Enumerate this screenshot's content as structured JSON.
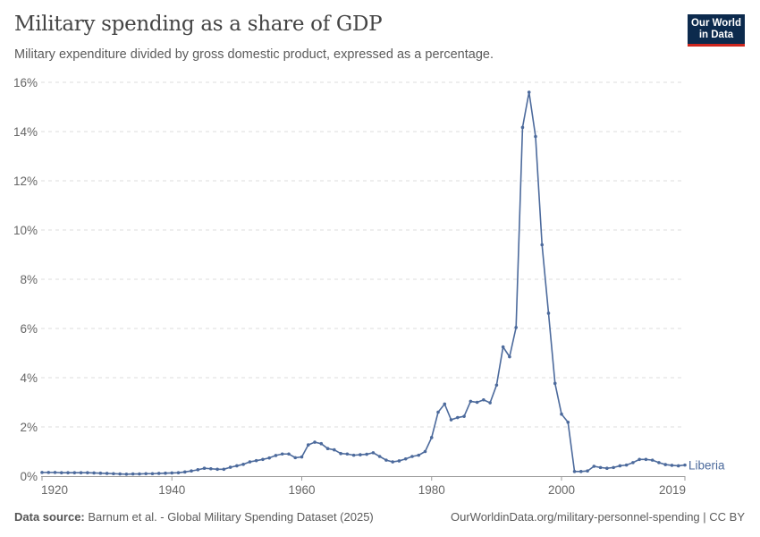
{
  "header": {
    "title": "Military spending as a share of GDP",
    "subtitle": "Military expenditure divided by gross domestic product, expressed as a percentage.",
    "logo_line1": "Our World",
    "logo_line2": "in Data"
  },
  "footer": {
    "source_label": "Data source:",
    "source": "Barnum et al. - Global Military Spending Dataset (2025)",
    "link": "OurWorldinData.org/military-personnel-spending | CC BY"
  },
  "chart_data": {
    "type": "line",
    "title": "Military spending as a share of GDP",
    "xlim": [
      1920,
      2019
    ],
    "ylim": [
      0,
      16
    ],
    "x_ticks": [
      1920,
      1940,
      1960,
      1980,
      2000,
      2019
    ],
    "y_ticks": [
      0,
      2,
      4,
      6,
      8,
      10,
      12,
      14,
      16
    ],
    "y_tick_labels": [
      "0%",
      "2%",
      "4%",
      "6%",
      "8%",
      "10%",
      "12%",
      "14%",
      "16%"
    ],
    "grid": "horizontal dashed",
    "color": "#4c6a9c",
    "series": [
      {
        "name": "Liberia",
        "start_year": 1920,
        "values": [
          0.15,
          0.15,
          0.15,
          0.14,
          0.14,
          0.14,
          0.14,
          0.14,
          0.13,
          0.12,
          0.11,
          0.1,
          0.09,
          0.08,
          0.09,
          0.09,
          0.1,
          0.1,
          0.11,
          0.12,
          0.13,
          0.14,
          0.17,
          0.21,
          0.26,
          0.32,
          0.3,
          0.28,
          0.28,
          0.36,
          0.42,
          0.48,
          0.58,
          0.63,
          0.68,
          0.74,
          0.84,
          0.9,
          0.9,
          0.75,
          0.78,
          1.27,
          1.38,
          1.32,
          1.12,
          1.07,
          0.92,
          0.9,
          0.85,
          0.87,
          0.89,
          0.95,
          0.8,
          0.65,
          0.58,
          0.62,
          0.7,
          0.8,
          0.85,
          1.0,
          1.57,
          2.6,
          2.93,
          2.29,
          2.38,
          2.43,
          3.04,
          3.0,
          3.1,
          2.98,
          3.7,
          5.25,
          4.85,
          6.04,
          14.17,
          15.6,
          13.8,
          9.4,
          6.62,
          3.77,
          2.52,
          2.19,
          0.19,
          0.19,
          0.21,
          0.4,
          0.35,
          0.32,
          0.35,
          0.42,
          0.45,
          0.55,
          0.68,
          0.68,
          0.65,
          0.55,
          0.47,
          0.44,
          0.42,
          0.45
        ]
      }
    ]
  }
}
